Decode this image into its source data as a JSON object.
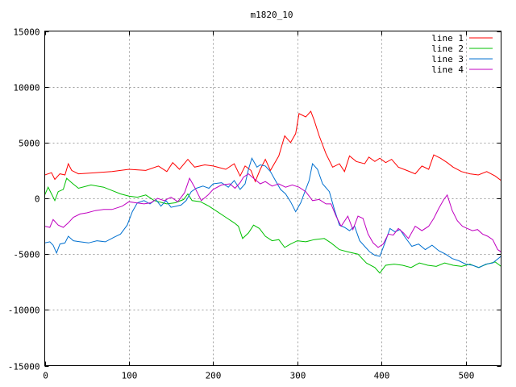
{
  "chart_data": {
    "type": "line",
    "title": "m1820_10",
    "xlabel": "",
    "ylabel": "",
    "xlim": [
      0,
      542
    ],
    "ylim": [
      -15000,
      15000
    ],
    "x_ticks": [
      0,
      100,
      200,
      300,
      400,
      500
    ],
    "y_ticks": [
      -15000,
      -10000,
      -5000,
      0,
      5000,
      10000,
      15000
    ],
    "grid": true,
    "legend_position": "top-right",
    "series": [
      {
        "name": "line 1",
        "color": "#ff0000",
        "points": [
          [
            0,
            2100
          ],
          [
            8,
            2300
          ],
          [
            12,
            1700
          ],
          [
            18,
            2200
          ],
          [
            24,
            2100
          ],
          [
            28,
            3100
          ],
          [
            32,
            2500
          ],
          [
            40,
            2200
          ],
          [
            60,
            2300
          ],
          [
            80,
            2400
          ],
          [
            100,
            2600
          ],
          [
            120,
            2500
          ],
          [
            135,
            2900
          ],
          [
            145,
            2400
          ],
          [
            152,
            3200
          ],
          [
            160,
            2600
          ],
          [
            170,
            3500
          ],
          [
            178,
            2800
          ],
          [
            190,
            3000
          ],
          [
            200,
            2900
          ],
          [
            215,
            2600
          ],
          [
            225,
            3100
          ],
          [
            232,
            2000
          ],
          [
            238,
            2900
          ],
          [
            245,
            2500
          ],
          [
            250,
            1500
          ],
          [
            256,
            2600
          ],
          [
            262,
            3500
          ],
          [
            268,
            2500
          ],
          [
            278,
            3800
          ],
          [
            285,
            5600
          ],
          [
            292,
            5000
          ],
          [
            298,
            5800
          ],
          [
            302,
            7600
          ],
          [
            310,
            7300
          ],
          [
            316,
            7800
          ],
          [
            320,
            7000
          ],
          [
            326,
            5600
          ],
          [
            334,
            4000
          ],
          [
            342,
            2800
          ],
          [
            350,
            3100
          ],
          [
            356,
            2400
          ],
          [
            362,
            3800
          ],
          [
            370,
            3300
          ],
          [
            380,
            3100
          ],
          [
            385,
            3700
          ],
          [
            392,
            3300
          ],
          [
            398,
            3600
          ],
          [
            405,
            3200
          ],
          [
            412,
            3500
          ],
          [
            420,
            2800
          ],
          [
            430,
            2500
          ],
          [
            440,
            2200
          ],
          [
            448,
            2900
          ],
          [
            456,
            2600
          ],
          [
            462,
            3900
          ],
          [
            470,
            3600
          ],
          [
            478,
            3200
          ],
          [
            485,
            2800
          ],
          [
            495,
            2400
          ],
          [
            505,
            2200
          ],
          [
            515,
            2100
          ],
          [
            525,
            2400
          ],
          [
            535,
            2000
          ],
          [
            542,
            1600
          ]
        ]
      },
      {
        "name": "line 2",
        "color": "#00c000",
        "points": [
          [
            0,
            300
          ],
          [
            4,
            1000
          ],
          [
            8,
            400
          ],
          [
            12,
            -200
          ],
          [
            16,
            600
          ],
          [
            22,
            800
          ],
          [
            26,
            1800
          ],
          [
            32,
            1400
          ],
          [
            40,
            900
          ],
          [
            55,
            1200
          ],
          [
            70,
            1000
          ],
          [
            80,
            700
          ],
          [
            90,
            400
          ],
          [
            100,
            200
          ],
          [
            110,
            100
          ],
          [
            120,
            300
          ],
          [
            130,
            -200
          ],
          [
            145,
            -500
          ],
          [
            155,
            -400
          ],
          [
            165,
            -100
          ],
          [
            170,
            400
          ],
          [
            175,
            -200
          ],
          [
            185,
            -300
          ],
          [
            195,
            -700
          ],
          [
            205,
            -1200
          ],
          [
            215,
            -1700
          ],
          [
            225,
            -2200
          ],
          [
            230,
            -2500
          ],
          [
            235,
            -3600
          ],
          [
            242,
            -3100
          ],
          [
            248,
            -2400
          ],
          [
            255,
            -2700
          ],
          [
            262,
            -3400
          ],
          [
            270,
            -3800
          ],
          [
            278,
            -3700
          ],
          [
            285,
            -4400
          ],
          [
            292,
            -4100
          ],
          [
            300,
            -3800
          ],
          [
            310,
            -3900
          ],
          [
            320,
            -3700
          ],
          [
            332,
            -3600
          ],
          [
            340,
            -4000
          ],
          [
            350,
            -4600
          ],
          [
            360,
            -4800
          ],
          [
            372,
            -5000
          ],
          [
            382,
            -5800
          ],
          [
            392,
            -6200
          ],
          [
            398,
            -6700
          ],
          [
            405,
            -6000
          ],
          [
            415,
            -5900
          ],
          [
            425,
            -6000
          ],
          [
            435,
            -6200
          ],
          [
            445,
            -5800
          ],
          [
            455,
            -6000
          ],
          [
            465,
            -6100
          ],
          [
            475,
            -5800
          ],
          [
            485,
            -6000
          ],
          [
            495,
            -6100
          ],
          [
            505,
            -5900
          ],
          [
            515,
            -6200
          ],
          [
            525,
            -5900
          ],
          [
            535,
            -5700
          ],
          [
            542,
            -6100
          ]
        ]
      },
      {
        "name": "line 3",
        "color": "#0070d0",
        "points": [
          [
            0,
            -4000
          ],
          [
            6,
            -3900
          ],
          [
            10,
            -4200
          ],
          [
            14,
            -4900
          ],
          [
            18,
            -4100
          ],
          [
            24,
            -4000
          ],
          [
            28,
            -3400
          ],
          [
            34,
            -3800
          ],
          [
            42,
            -3900
          ],
          [
            52,
            -4000
          ],
          [
            62,
            -3800
          ],
          [
            72,
            -3900
          ],
          [
            82,
            -3500
          ],
          [
            90,
            -3200
          ],
          [
            98,
            -2400
          ],
          [
            104,
            -1200
          ],
          [
            110,
            -400
          ],
          [
            118,
            -200
          ],
          [
            125,
            -500
          ],
          [
            132,
            -100
          ],
          [
            138,
            -700
          ],
          [
            144,
            -200
          ],
          [
            150,
            -800
          ],
          [
            156,
            -700
          ],
          [
            162,
            -600
          ],
          [
            168,
            -200
          ],
          [
            174,
            600
          ],
          [
            180,
            900
          ],
          [
            188,
            1100
          ],
          [
            195,
            900
          ],
          [
            200,
            1300
          ],
          [
            210,
            1400
          ],
          [
            218,
            1000
          ],
          [
            225,
            1600
          ],
          [
            232,
            800
          ],
          [
            238,
            1300
          ],
          [
            242,
            2600
          ],
          [
            246,
            3600
          ],
          [
            252,
            2800
          ],
          [
            256,
            3000
          ],
          [
            262,
            2900
          ],
          [
            268,
            2400
          ],
          [
            274,
            1600
          ],
          [
            280,
            800
          ],
          [
            286,
            400
          ],
          [
            292,
            -300
          ],
          [
            298,
            -1200
          ],
          [
            304,
            -400
          ],
          [
            308,
            400
          ],
          [
            314,
            1600
          ],
          [
            318,
            3100
          ],
          [
            324,
            2600
          ],
          [
            330,
            1300
          ],
          [
            338,
            600
          ],
          [
            344,
            -1000
          ],
          [
            350,
            -2400
          ],
          [
            356,
            -2600
          ],
          [
            362,
            -2900
          ],
          [
            368,
            -2500
          ],
          [
            374,
            -3800
          ],
          [
            380,
            -4300
          ],
          [
            386,
            -4800
          ],
          [
            392,
            -5100
          ],
          [
            398,
            -5200
          ],
          [
            404,
            -4000
          ],
          [
            410,
            -2700
          ],
          [
            416,
            -3000
          ],
          [
            422,
            -2800
          ],
          [
            428,
            -3500
          ],
          [
            436,
            -4300
          ],
          [
            444,
            -4100
          ],
          [
            452,
            -4600
          ],
          [
            460,
            -4200
          ],
          [
            468,
            -4700
          ],
          [
            476,
            -5000
          ],
          [
            484,
            -5400
          ],
          [
            492,
            -5600
          ],
          [
            500,
            -5900
          ],
          [
            508,
            -6000
          ],
          [
            516,
            -6200
          ],
          [
            524,
            -5900
          ],
          [
            532,
            -5800
          ],
          [
            542,
            -5200
          ]
        ]
      },
      {
        "name": "line 4",
        "color": "#c000c0",
        "points": [
          [
            0,
            -2500
          ],
          [
            6,
            -2600
          ],
          [
            10,
            -1900
          ],
          [
            16,
            -2400
          ],
          [
            22,
            -2600
          ],
          [
            28,
            -2200
          ],
          [
            34,
            -1700
          ],
          [
            42,
            -1400
          ],
          [
            50,
            -1300
          ],
          [
            60,
            -1100
          ],
          [
            70,
            -1000
          ],
          [
            80,
            -1000
          ],
          [
            92,
            -700
          ],
          [
            100,
            -300
          ],
          [
            108,
            -400
          ],
          [
            118,
            -500
          ],
          [
            126,
            -400
          ],
          [
            134,
            0
          ],
          [
            142,
            -200
          ],
          [
            150,
            100
          ],
          [
            158,
            -300
          ],
          [
            166,
            500
          ],
          [
            172,
            1800
          ],
          [
            178,
            1000
          ],
          [
            186,
            -200
          ],
          [
            194,
            300
          ],
          [
            200,
            800
          ],
          [
            210,
            1200
          ],
          [
            220,
            1300
          ],
          [
            226,
            900
          ],
          [
            232,
            1400
          ],
          [
            236,
            1900
          ],
          [
            242,
            2200
          ],
          [
            248,
            1800
          ],
          [
            256,
            1300
          ],
          [
            262,
            1500
          ],
          [
            270,
            1100
          ],
          [
            278,
            1300
          ],
          [
            286,
            1000
          ],
          [
            294,
            1200
          ],
          [
            302,
            1000
          ],
          [
            310,
            600
          ],
          [
            318,
            -200
          ],
          [
            326,
            -100
          ],
          [
            334,
            -500
          ],
          [
            340,
            -500
          ],
          [
            346,
            -1600
          ],
          [
            352,
            -2500
          ],
          [
            360,
            -1600
          ],
          [
            366,
            -2800
          ],
          [
            372,
            -1600
          ],
          [
            378,
            -1800
          ],
          [
            384,
            -3200
          ],
          [
            390,
            -4000
          ],
          [
            396,
            -4400
          ],
          [
            402,
            -4100
          ],
          [
            408,
            -3200
          ],
          [
            414,
            -3300
          ],
          [
            420,
            -2700
          ],
          [
            426,
            -3100
          ],
          [
            432,
            -3600
          ],
          [
            440,
            -2500
          ],
          [
            448,
            -2900
          ],
          [
            456,
            -2500
          ],
          [
            462,
            -1800
          ],
          [
            468,
            -900
          ],
          [
            474,
            -100
          ],
          [
            478,
            300
          ],
          [
            484,
            -1100
          ],
          [
            490,
            -2000
          ],
          [
            496,
            -2500
          ],
          [
            502,
            -2700
          ],
          [
            508,
            -2900
          ],
          [
            514,
            -2800
          ],
          [
            520,
            -3200
          ],
          [
            526,
            -3400
          ],
          [
            532,
            -3700
          ],
          [
            538,
            -4600
          ],
          [
            542,
            -4800
          ]
        ]
      }
    ]
  }
}
